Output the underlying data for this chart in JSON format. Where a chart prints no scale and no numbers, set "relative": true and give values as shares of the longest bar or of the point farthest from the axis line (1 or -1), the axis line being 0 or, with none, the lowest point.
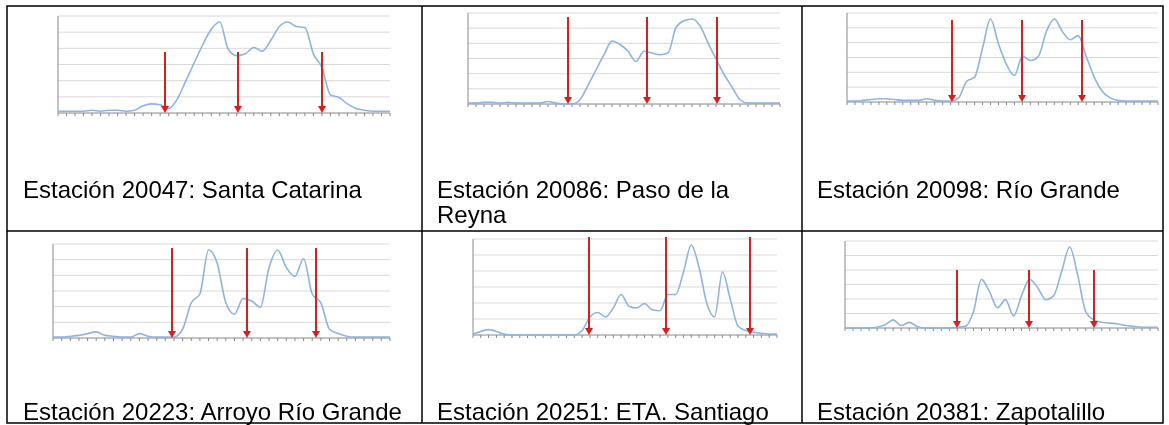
{
  "chart_data": [
    {
      "type": "line",
      "title": "Estación 20047: Santa Catarina",
      "relative": true,
      "grid": true,
      "categories": [
        null,
        null,
        null,
        null,
        null,
        null,
        null,
        null,
        null,
        null,
        null,
        null,
        null,
        null,
        null,
        null,
        null,
        null,
        null,
        null,
        null,
        null,
        null,
        null,
        null,
        null,
        null,
        null,
        null,
        null,
        null,
        null,
        null,
        null,
        null,
        null,
        null,
        null,
        null,
        null
      ],
      "series": [
        {
          "color": "#8db4e2",
          "values": [
            0.02,
            0.02,
            0.02,
            0.02,
            0.03,
            0.02,
            0.03,
            0.03,
            0.02,
            0.03,
            0.08,
            0.1,
            0.09,
            0.05,
            0.15,
            0.35,
            0.55,
            0.75,
            0.92,
            1.0,
            0.7,
            0.63,
            0.65,
            0.72,
            0.68,
            0.8,
            0.95,
            1.0,
            0.95,
            0.94,
            0.65,
            0.5,
            0.2,
            0.17,
            0.1,
            0.05,
            0.03,
            0.02,
            0.02,
            0.02
          ]
        }
      ]
    },
    {
      "type": "line",
      "title": "Estación 20086: Paso de la Reyna",
      "relative": true,
      "grid": true,
      "categories": [
        null,
        null,
        null,
        null,
        null,
        null,
        null,
        null,
        null,
        null,
        null,
        null,
        null,
        null,
        null,
        null,
        null,
        null,
        null,
        null,
        null,
        null,
        null,
        null,
        null,
        null,
        null,
        null,
        null,
        null,
        null,
        null,
        null,
        null,
        null,
        null,
        null,
        null,
        null,
        null
      ],
      "series": [
        {
          "color": "#8db4e2",
          "values": [
            0.01,
            0.01,
            0.02,
            0.02,
            0.01,
            0.02,
            0.01,
            0.01,
            0.01,
            0.01,
            0.03,
            0.01,
            0,
            0,
            0.05,
            0.22,
            0.4,
            0.58,
            0.74,
            0.7,
            0.62,
            0.5,
            0.62,
            0.6,
            0.58,
            0.6,
            0.9,
            0.98,
            1.0,
            0.92,
            0.72,
            0.53,
            0.35,
            0.2,
            0.05,
            0.01,
            0.01,
            0.01,
            0.01,
            0.01
          ]
        }
      ]
    },
    {
      "type": "line",
      "title": "Estación 20098: Río Grande",
      "relative": true,
      "grid": true,
      "categories": [
        null,
        null,
        null,
        null,
        null,
        null,
        null,
        null,
        null,
        null,
        null,
        null,
        null,
        null,
        null,
        null,
        null,
        null,
        null,
        null,
        null,
        null,
        null,
        null,
        null,
        null,
        null,
        null,
        null,
        null,
        null,
        null,
        null,
        null,
        null,
        null,
        null,
        null,
        null,
        null
      ],
      "series": [
        {
          "color": "#8db4e2",
          "values": [
            0.01,
            0.01,
            0.02,
            0.03,
            0.04,
            0.04,
            0.03,
            0.02,
            0.02,
            0.02,
            0.04,
            0.02,
            0.01,
            0.01,
            0.05,
            0.25,
            0.3,
            0.65,
            1.0,
            0.7,
            0.45,
            0.32,
            0.55,
            0.5,
            0.55,
            0.85,
            1.0,
            0.85,
            0.75,
            0.8,
            0.55,
            0.3,
            0.13,
            0.05,
            0.02,
            0.01,
            0.01,
            0.01,
            0.01,
            0.01
          ]
        }
      ]
    },
    {
      "type": "line",
      "title": "Estación 20223: Arroyo Río Grande",
      "relative": true,
      "grid": true,
      "categories": [
        null,
        null,
        null,
        null,
        null,
        null,
        null,
        null,
        null,
        null,
        null,
        null,
        null,
        null,
        null,
        null,
        null,
        null,
        null,
        null,
        null,
        null,
        null,
        null,
        null,
        null,
        null,
        null,
        null,
        null,
        null,
        null,
        null,
        null,
        null,
        null,
        null,
        null,
        null,
        null
      ],
      "series": [
        {
          "color": "#8db4e2",
          "values": [
            0.01,
            0.01,
            0.02,
            0.03,
            0.05,
            0.07,
            0.03,
            0.02,
            0.01,
            0.01,
            0.05,
            0.02,
            0.01,
            0.01,
            0.01,
            0.1,
            0.4,
            0.5,
            1.0,
            0.85,
            0.4,
            0.27,
            0.45,
            0.42,
            0.35,
            0.8,
            1.0,
            0.8,
            0.7,
            0.9,
            0.5,
            0.4,
            0.1,
            0.05,
            0.02,
            0.01,
            0.01,
            0.01,
            0.01,
            0.01
          ]
        }
      ]
    },
    {
      "type": "line",
      "title": "Estación 20251: ETA. Santiago",
      "relative": true,
      "grid": true,
      "categories": [
        null,
        null,
        null,
        null,
        null,
        null,
        null,
        null,
        null,
        null,
        null,
        null,
        null,
        null,
        null,
        null,
        null,
        null,
        null,
        null,
        null,
        null,
        null,
        null,
        null,
        null,
        null,
        null,
        null,
        null,
        null,
        null,
        null,
        null,
        null,
        null,
        null,
        null,
        null,
        null
      ],
      "series": [
        {
          "color": "#8db4e2",
          "values": [
            0.01,
            0.04,
            0.06,
            0.04,
            0.01,
            0,
            0,
            0,
            0,
            0,
            0,
            0,
            0,
            0,
            0.05,
            0.2,
            0.25,
            0.2,
            0.3,
            0.45,
            0.32,
            0.3,
            0.35,
            0.28,
            0.27,
            0.45,
            0.45,
            0.7,
            1.0,
            0.75,
            0.35,
            0.2,
            0.7,
            0.4,
            0.1,
            0.05,
            0.03,
            0.02,
            0.01,
            0.01
          ]
        }
      ]
    },
    {
      "type": "line",
      "title": "Estación 20381: Zapotalillo",
      "relative": true,
      "grid": true,
      "categories": [
        null,
        null,
        null,
        null,
        null,
        null,
        null,
        null,
        null,
        null,
        null,
        null,
        null,
        null,
        null,
        null,
        null,
        null,
        null,
        null,
        null,
        null,
        null,
        null,
        null,
        null,
        null,
        null,
        null,
        null,
        null,
        null,
        null,
        null,
        null,
        null,
        null,
        null,
        null,
        null
      ],
      "series": [
        {
          "color": "#8db4e2",
          "values": [
            0,
            0,
            0,
            0,
            0.01,
            0.04,
            0.1,
            0.03,
            0.07,
            0.02,
            0,
            0,
            0,
            0,
            0.01,
            0.02,
            0.2,
            0.6,
            0.45,
            0.25,
            0.35,
            0.15,
            0.4,
            0.6,
            0.5,
            0.35,
            0.4,
            0.7,
            1.0,
            0.65,
            0.2,
            0.1,
            0.07,
            0.06,
            0.05,
            0.03,
            0.02,
            0.01,
            0.01,
            0.01
          ]
        }
      ]
    }
  ]
}
